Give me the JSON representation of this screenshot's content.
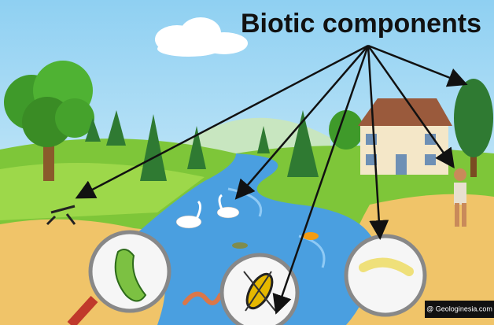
{
  "title": "Biotic components",
  "watermark": "@ Geologinesia.com"
}
